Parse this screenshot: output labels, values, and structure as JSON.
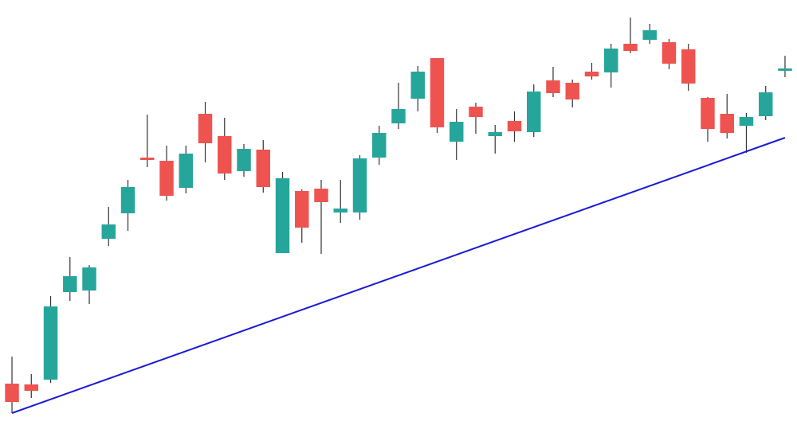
{
  "chart_data": {
    "type": "candlestick",
    "x": [
      0,
      1,
      2,
      3,
      4,
      5,
      6,
      7,
      8,
      9,
      10,
      11,
      12,
      13,
      14,
      15,
      16,
      17,
      18,
      19,
      20,
      21,
      22,
      23,
      24,
      25,
      26,
      27,
      28,
      29,
      30,
      31,
      32,
      33,
      34,
      35,
      36,
      37,
      38,
      39,
      40
    ],
    "open": [
      57,
      56,
      62,
      172,
      174,
      239,
      271,
      341,
      337,
      303,
      396,
      368,
      324,
      351,
      221,
      299,
      302,
      272,
      272,
      341,
      384,
      415,
      466,
      361,
      405,
      368,
      387,
      373,
      438,
      435,
      449,
      448,
      484,
      489,
      486,
      477,
      416,
      396,
      381,
      393,
      450
    ],
    "high": [
      91,
      69,
      167,
      216,
      206,
      279,
      313,
      395,
      356,
      356,
      411,
      391,
      358,
      363,
      323,
      301,
      313,
      313,
      344,
      381,
      435,
      456,
      466,
      402,
      410,
      382,
      399,
      433,
      455,
      439,
      460,
      484,
      517,
      509,
      490,
      484,
      417,
      421,
      397,
      431,
      469
    ],
    "low": [
      20,
      39,
      58,
      161,
      157,
      230,
      249,
      329,
      287,
      296,
      335,
      313,
      317,
      297,
      221,
      234,
      220,
      259,
      263,
      332,
      377,
      399,
      372,
      338,
      371,
      346,
      361,
      367,
      417,
      404,
      439,
      429,
      472,
      484,
      452,
      425,
      361,
      365,
      347,
      388,
      442
    ],
    "close": [
      34,
      48,
      154,
      192,
      203,
      257,
      304,
      338,
      293,
      346,
      359,
      321,
      352,
      304,
      315,
      253,
      285,
      277,
      340,
      372,
      402,
      449,
      379,
      386,
      392,
      373,
      374,
      424,
      422,
      414,
      443,
      478,
      475,
      501,
      459,
      434,
      377,
      372,
      392,
      423,
      453
    ],
    "up_color": "#26a69a",
    "down_color": "#ef5350",
    "wick_color": "#333333",
    "trendline": {
      "x": [
        0,
        40
      ],
      "values": [
        20,
        366
      ],
      "color": "#1a1ad6"
    },
    "xlim": [
      -0.62,
      40.62
    ],
    "ylim": [
      0,
      539
    ]
  }
}
